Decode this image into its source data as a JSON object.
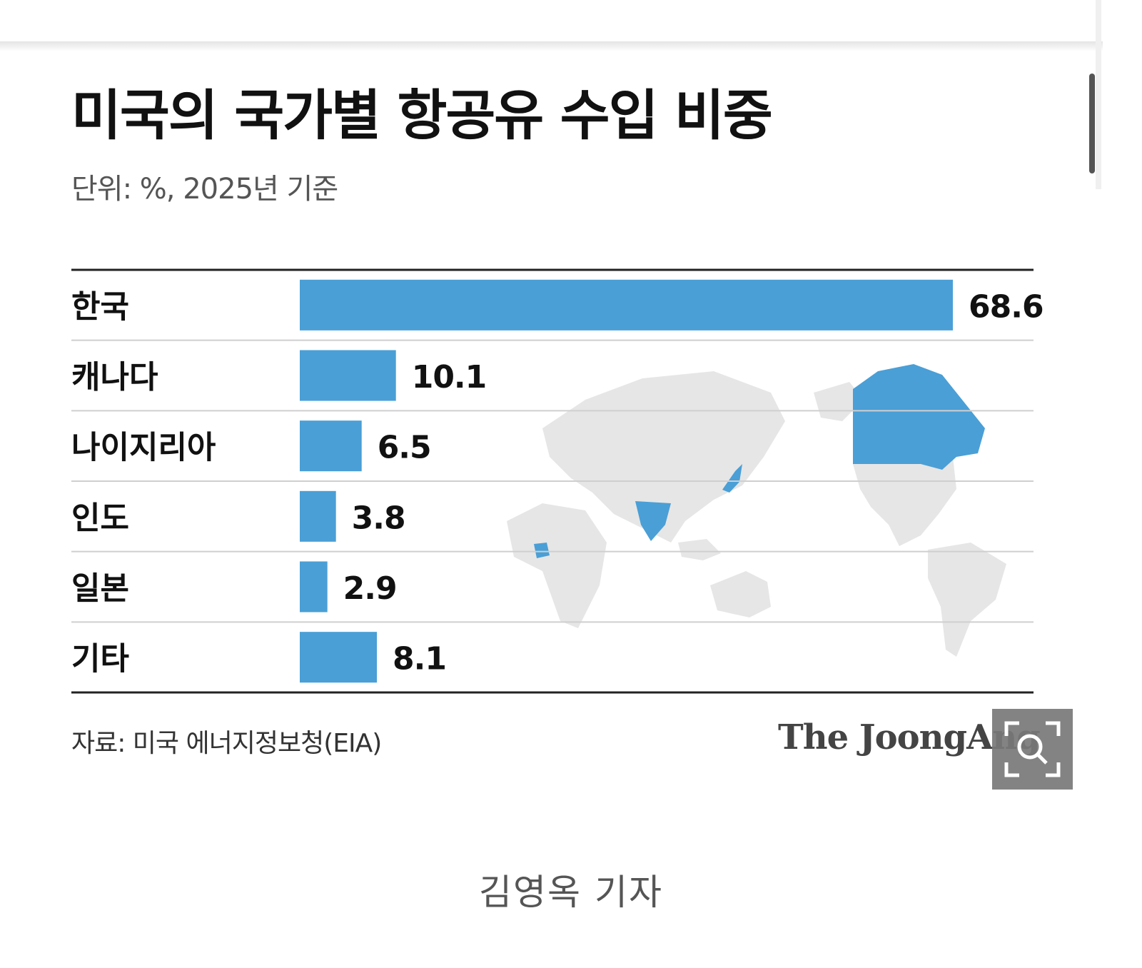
{
  "chart_data": {
    "type": "bar",
    "orientation": "horizontal",
    "title": "미국의 국가별 항공유 수입 비중",
    "subtitle": "단위: %, 2025년 기준",
    "categories": [
      "한국",
      "캐나다",
      "나이지리아",
      "인도",
      "일본",
      "기타"
    ],
    "values": [
      68.6,
      10.1,
      6.5,
      3.8,
      2.9,
      8.1
    ],
    "value_labels": [
      "68.6",
      "10.1",
      "6.5",
      "3.8",
      "2.9",
      "8.1"
    ],
    "xlim": [
      0,
      68.6
    ],
    "grid": true,
    "legend": "none",
    "source": "자료: 미국 에너지정보청(EIA)"
  },
  "brand": "The JoongAng",
  "byline": "김영옥 기자",
  "colors": {
    "bar": "#4a9fd6",
    "map_land": "#e6e6e6",
    "map_highlight": "#4a9fd6",
    "text": "#111111",
    "subtle_text": "#555555"
  },
  "icons": {
    "zoom": "zoom-magnifier-icon",
    "map": "world-map-background"
  }
}
